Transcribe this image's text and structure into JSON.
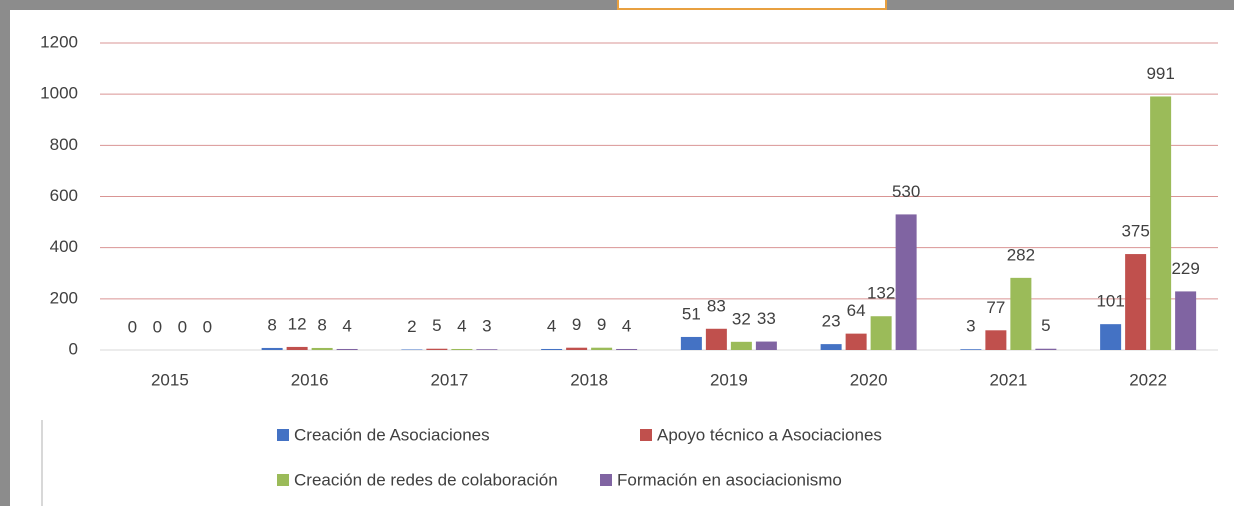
{
  "chart_data": {
    "type": "bar",
    "categories": [
      "2015",
      "2016",
      "2017",
      "2018",
      "2019",
      "2020",
      "2021",
      "2022"
    ],
    "series": [
      {
        "name": "Creación de Asociaciones",
        "color": "#4472c4",
        "values": [
          0,
          8,
          2,
          4,
          51,
          23,
          3,
          101
        ]
      },
      {
        "name": "Apoyo técnico a Asociaciones",
        "color": "#c0504d",
        "values": [
          0,
          12,
          5,
          9,
          83,
          64,
          77,
          375
        ]
      },
      {
        "name": "Creación de redes de colaboración",
        "color": "#9bbb59",
        "values": [
          0,
          8,
          4,
          9,
          32,
          132,
          282,
          991
        ]
      },
      {
        "name": "Formación en asociacionismo",
        "color": "#8064a2",
        "values": [
          0,
          4,
          3,
          4,
          33,
          530,
          5,
          229
        ]
      }
    ],
    "ylim": [
      0,
      1200
    ],
    "yticks": [
      0,
      200,
      400,
      600,
      800,
      1000,
      1200
    ],
    "grid": true,
    "legend": "bottom",
    "data_labels": true
  }
}
